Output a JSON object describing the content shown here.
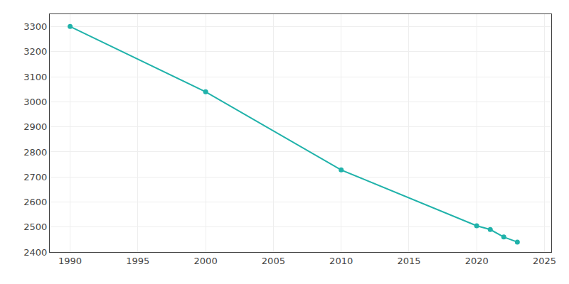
{
  "chart_data": {
    "type": "line",
    "x": [
      1990,
      2000,
      2010,
      2020,
      2021,
      2022,
      2023
    ],
    "values": [
      3301,
      3040,
      2728,
      2505,
      2490,
      2460,
      2440
    ],
    "color": "#20b2aa",
    "marker": "circle",
    "xlim": [
      1988.5,
      2025.5
    ],
    "xticks": [
      1990,
      1995,
      2000,
      2005,
      2010,
      2015,
      2020,
      2025
    ],
    "ylim": [
      2400,
      3350
    ],
    "yticks": [
      2400,
      2500,
      2600,
      2700,
      2800,
      2900,
      3000,
      3100,
      3200,
      3300
    ],
    "grid": true
  }
}
